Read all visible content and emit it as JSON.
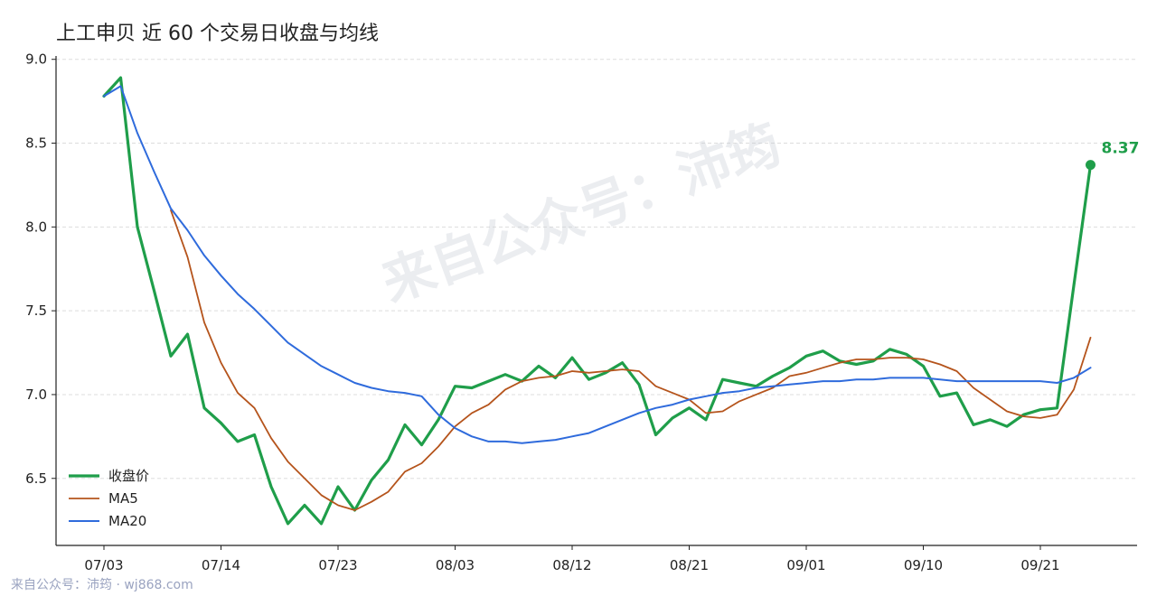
{
  "chart_data": {
    "type": "line",
    "title": "上工申贝 近 60 个交易日收盘与均线",
    "xlabel": "",
    "ylabel": "",
    "ylim": [
      6.1,
      9.02
    ],
    "yticks": [
      "6.5",
      "7.0",
      "7.5",
      "8.0",
      "8.5",
      "9.0"
    ],
    "x_tick_labels": [
      {
        "label": "07/03",
        "index": 0
      },
      {
        "label": "07/14",
        "index": 7
      },
      {
        "label": "07/23",
        "index": 14
      },
      {
        "label": "08/03",
        "index": 21
      },
      {
        "label": "08/12",
        "index": 28
      },
      {
        "label": "08/21",
        "index": 35
      },
      {
        "label": "09/01",
        "index": 42
      },
      {
        "label": "09/10",
        "index": 49
      },
      {
        "label": "09/21",
        "index": 56
      }
    ],
    "grid": "horizontal dashed",
    "legend_position": "bottom-left",
    "series": [
      {
        "name": "收盘价",
        "color": "#1f9e4a",
        "values": [
          8.78,
          8.89,
          8.0,
          7.62,
          7.23,
          7.36,
          6.92,
          6.83,
          6.72,
          6.76,
          6.45,
          6.23,
          6.34,
          6.23,
          6.45,
          6.31,
          6.49,
          6.61,
          6.82,
          6.7,
          6.85,
          7.05,
          7.04,
          7.08,
          7.12,
          7.08,
          7.17,
          7.1,
          7.22,
          7.09,
          7.13,
          7.19,
          7.06,
          6.76,
          6.86,
          6.92,
          6.85,
          7.09,
          7.07,
          7.05,
          7.11,
          7.16,
          7.23,
          7.26,
          7.2,
          7.18,
          7.2,
          7.27,
          7.24,
          7.17,
          6.99,
          7.01,
          6.82,
          6.85,
          6.81,
          6.88,
          6.91,
          6.92,
          7.65,
          8.37
        ]
      },
      {
        "name": "MA5",
        "color": "#b5541c",
        "values": [
          null,
          null,
          null,
          null,
          8.1,
          7.82,
          7.43,
          7.19,
          7.01,
          6.92,
          6.74,
          6.6,
          6.5,
          6.4,
          6.34,
          6.31,
          6.36,
          6.42,
          6.54,
          6.59,
          6.69,
          6.81,
          6.89,
          6.94,
          7.03,
          7.08,
          7.1,
          7.11,
          7.14,
          7.13,
          7.14,
          7.15,
          7.14,
          7.05,
          7.01,
          6.97,
          6.89,
          6.9,
          6.96,
          7.0,
          7.04,
          7.11,
          7.13,
          7.16,
          7.19,
          7.21,
          7.21,
          7.22,
          7.22,
          7.21,
          7.18,
          7.14,
          7.04,
          6.97,
          6.9,
          6.87,
          6.86,
          6.88,
          7.03,
          7.34
        ]
      },
      {
        "name": "MA20",
        "color": "#2f6bdc",
        "values": [
          8.78,
          8.84,
          8.56,
          8.33,
          8.11,
          7.98,
          7.83,
          7.71,
          7.6,
          7.51,
          7.41,
          7.31,
          7.24,
          7.17,
          7.12,
          7.07,
          7.04,
          7.02,
          7.01,
          6.99,
          6.88,
          6.8,
          6.75,
          6.72,
          6.72,
          6.71,
          6.72,
          6.73,
          6.75,
          6.77,
          6.81,
          6.85,
          6.89,
          6.92,
          6.94,
          6.97,
          6.99,
          7.01,
          7.02,
          7.04,
          7.05,
          7.06,
          7.07,
          7.08,
          7.08,
          7.09,
          7.09,
          7.1,
          7.1,
          7.1,
          7.09,
          7.08,
          7.08,
          7.08,
          7.08,
          7.08,
          7.08,
          7.07,
          7.1,
          7.16
        ]
      }
    ],
    "end_annotation": {
      "text": "8.37",
      "color": "#1f9e4a"
    }
  },
  "watermark": "来自公众号：沛筠",
  "footer": "来自公众号：沛筠 · wj868.com"
}
